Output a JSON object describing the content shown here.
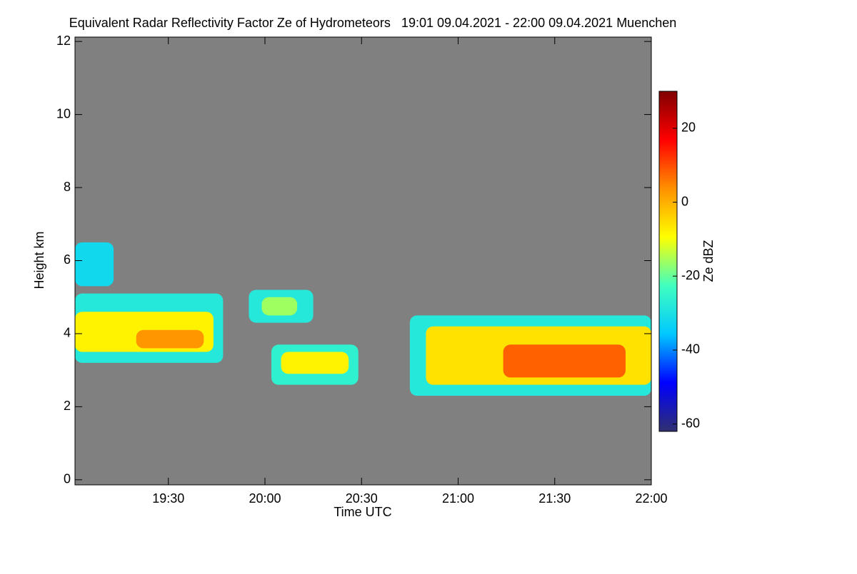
{
  "chart_data": {
    "type": "heatmap",
    "title": "Equivalent Radar Reflectivity Factor Ze of Hydrometeors   19:01 09.04.2021 - 22:00 09.04.2021 Muenchen",
    "xlabel": "Time UTC",
    "ylabel": "Height km",
    "colorbar_label": "Ze dBZ",
    "xlim": [
      1141,
      1320
    ],
    "xticks": [
      {
        "value": 1170,
        "label": "19:30"
      },
      {
        "value": 1200,
        "label": "20:00"
      },
      {
        "value": 1230,
        "label": "20:30"
      },
      {
        "value": 1260,
        "label": "21:00"
      },
      {
        "value": 1290,
        "label": "21:30"
      },
      {
        "value": 1320,
        "label": "22:00"
      }
    ],
    "ylim": [
      -0.14,
      12.12
    ],
    "yticks": [
      0,
      2,
      4,
      6,
      8,
      10,
      12
    ],
    "zlim": [
      -62,
      30
    ],
    "zticks": [
      -60,
      -40,
      -20,
      0,
      20
    ],
    "background": "#808080",
    "colors": [
      "#303070",
      "#0000ff",
      "#00c8ff",
      "#40ffc0",
      "#ffff00",
      "#ff9000",
      "#ff0000",
      "#800000"
    ],
    "cells": [
      {
        "time": [
          1141,
          1187
        ],
        "height": [
          3.2,
          5.1
        ],
        "value": -28
      },
      {
        "time": [
          1141,
          1184
        ],
        "height": [
          3.5,
          4.6
        ],
        "value": -8
      },
      {
        "time": [
          1160,
          1181
        ],
        "height": [
          3.6,
          4.1
        ],
        "value": 3
      },
      {
        "time": [
          1141,
          1153
        ],
        "height": [
          5.3,
          6.5
        ],
        "value": -32
      },
      {
        "time": [
          1195,
          1215
        ],
        "height": [
          4.3,
          5.2
        ],
        "value": -28
      },
      {
        "time": [
          1199,
          1210
        ],
        "height": [
          4.5,
          5.0
        ],
        "value": -16
      },
      {
        "time": [
          1202,
          1229
        ],
        "height": [
          2.6,
          3.7
        ],
        "value": -26
      },
      {
        "time": [
          1205,
          1226
        ],
        "height": [
          2.9,
          3.5
        ],
        "value": -8
      },
      {
        "time": [
          1245,
          1320
        ],
        "height": [
          2.3,
          4.5
        ],
        "value": -28
      },
      {
        "time": [
          1250,
          1320
        ],
        "height": [
          2.6,
          4.2
        ],
        "value": -6
      },
      {
        "time": [
          1274,
          1312
        ],
        "height": [
          2.8,
          3.7
        ],
        "value": 8
      }
    ]
  }
}
